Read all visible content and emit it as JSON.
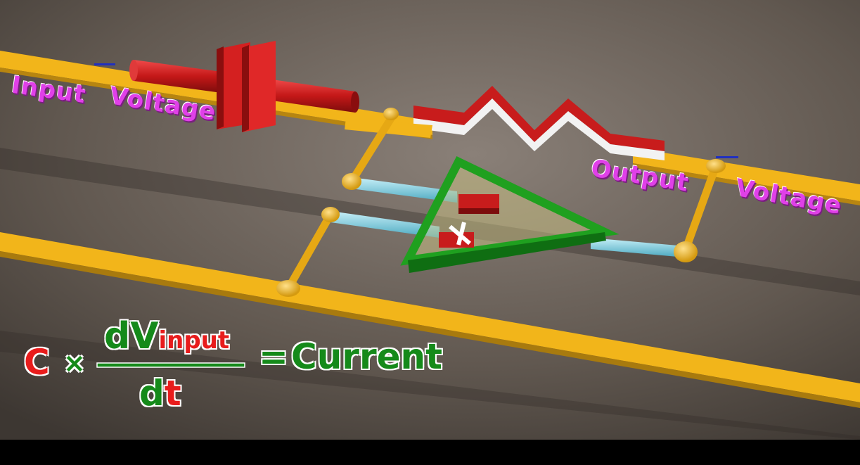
{
  "labels": {
    "input": "Input",
    "voltage_in": "Voltage",
    "output": "Output",
    "voltage_out": "Voltage"
  },
  "equation": {
    "c": "C",
    "times": "×",
    "d_numerator": "dV",
    "subscript": "input",
    "d_denominator": "d",
    "t": "t",
    "equals": "=",
    "result": "Current"
  },
  "opamp": {
    "minus": "−",
    "plus": "+"
  },
  "colors": {
    "wire": "#f2b51a",
    "capacitor": "#d42020",
    "resistor_red": "#c81c1c",
    "resistor_white": "#f2f2f2",
    "opamp_outline": "#1fa01f",
    "lead": "#7ecfe0",
    "label": "#e040e8",
    "equation_red": "#e81c1c",
    "equation_green": "#158a1a"
  }
}
